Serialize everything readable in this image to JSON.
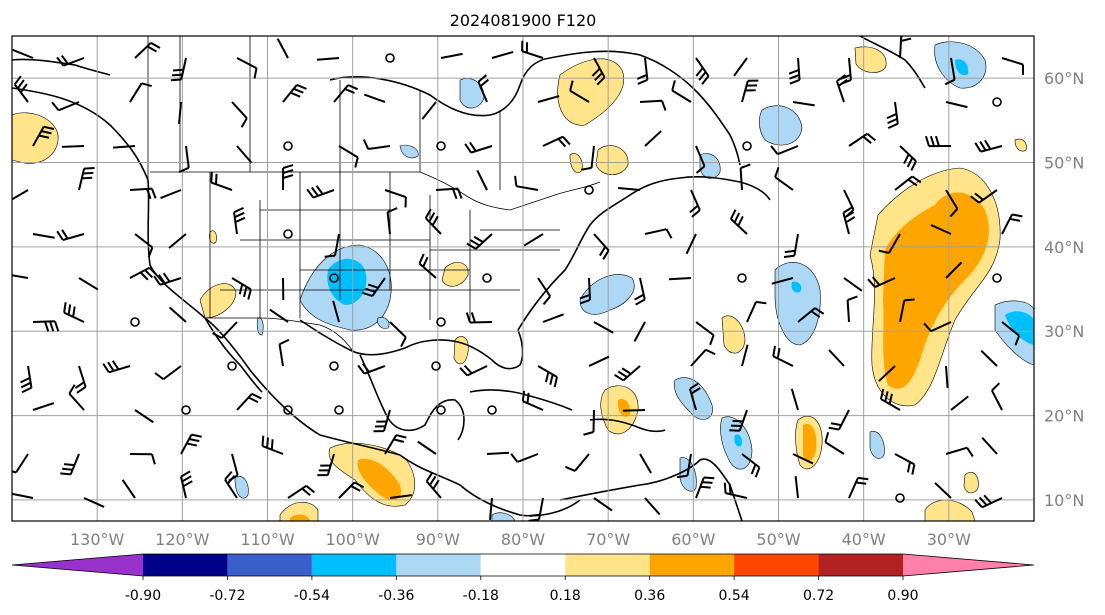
{
  "title": "2024081900 F120",
  "map": {
    "lon_labels": [
      "130°W",
      "120°W",
      "110°W",
      "100°W",
      "90°W",
      "80°W",
      "70°W",
      "60°W",
      "50°W",
      "40°W",
      "30°W"
    ],
    "lat_labels": [
      "60°N",
      "50°N",
      "40°N",
      "30°N",
      "20°N",
      "10°N"
    ],
    "lon_range": [
      -140,
      -20
    ],
    "lat_range": [
      7.5,
      65
    ],
    "gridlines": true
  },
  "colorbar": {
    "levels": [
      "-0.90",
      "-0.72",
      "-0.54",
      "-0.36",
      "-0.18",
      "0.18",
      "0.36",
      "0.54",
      "0.72",
      "0.90"
    ],
    "colors": [
      "#9932cc",
      "#00008b",
      "#3a5fcd",
      "#00bfff",
      "#add8f5",
      "#ffffff",
      "#ffe48a",
      "#ffa500",
      "#ff4500",
      "#b22222",
      "#ff80a8"
    ],
    "extend": "both"
  },
  "fill_colors": {
    "pos1": "#ffe48a",
    "pos2": "#ffa500",
    "neg1": "#add8f5",
    "neg2": "#00bfff"
  }
}
